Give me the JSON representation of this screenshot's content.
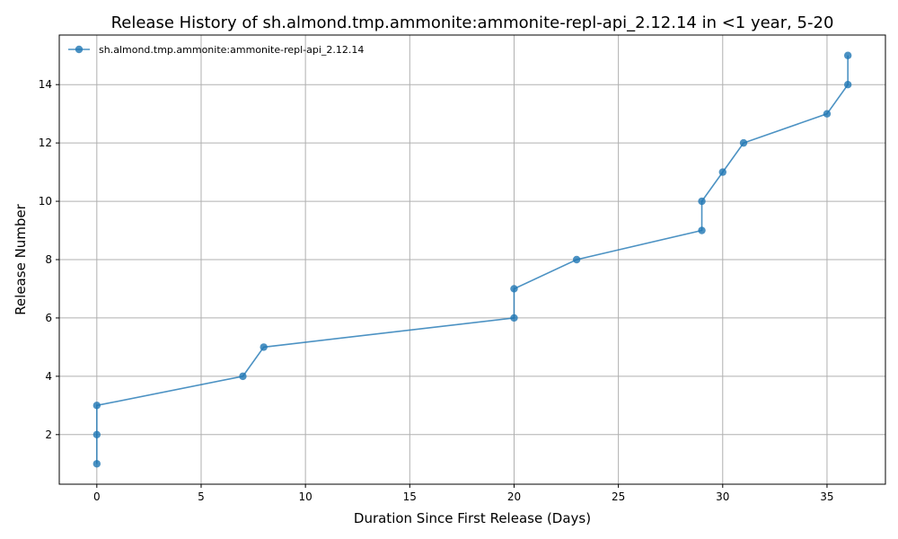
{
  "chart_data": {
    "type": "line",
    "title": "Release History of sh.almond.tmp.ammonite:ammonite-repl-api_2.12.14 in <1 year, 5-20",
    "xlabel": "Duration Since First Release (Days)",
    "ylabel": "Release Number",
    "xlim": [
      -1.8,
      37.8
    ],
    "ylim": [
      0.3,
      15.7
    ],
    "xticks": [
      0,
      5,
      10,
      15,
      20,
      25,
      30,
      35
    ],
    "yticks": [
      2,
      4,
      6,
      8,
      10,
      12,
      14
    ],
    "grid": true,
    "legend_position": "top-left",
    "colors": {
      "series": "#1f77b4"
    },
    "series": [
      {
        "name": "sh.almond.tmp.ammonite:ammonite-repl-api_2.12.14",
        "x": [
          0,
          0,
          0,
          7,
          8,
          20,
          20,
          23,
          29,
          29,
          30,
          31,
          35,
          36,
          36
        ],
        "y": [
          1,
          2,
          3,
          4,
          5,
          6,
          7,
          8,
          9,
          10,
          11,
          12,
          13,
          14,
          15
        ]
      }
    ]
  }
}
